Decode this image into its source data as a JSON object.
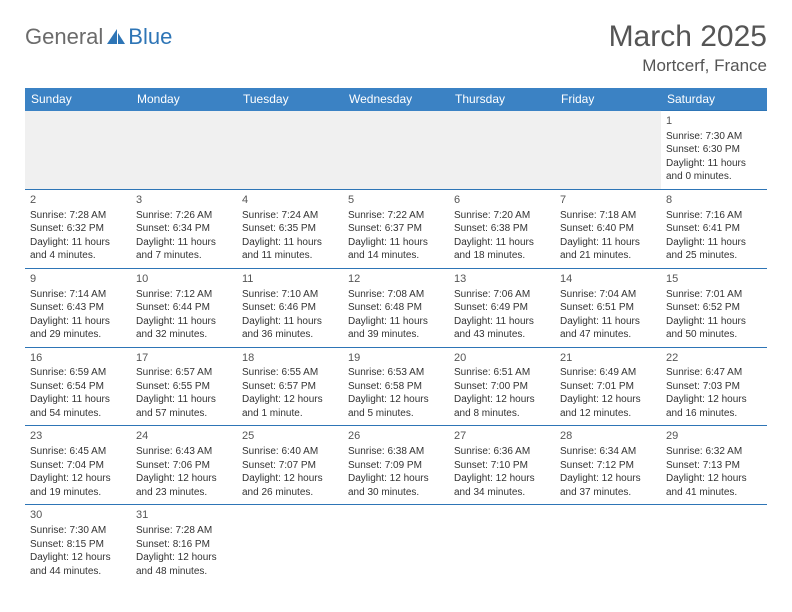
{
  "brand": {
    "part1": "General",
    "part2": "Blue"
  },
  "title": "March 2025",
  "location": "Mortcerf, France",
  "colors": {
    "header_bg": "#3b82c4",
    "header_text": "#ffffff",
    "border": "#2e75b6",
    "text": "#333333",
    "title_text": "#555555",
    "logo_gray": "#6b6b6b",
    "logo_blue": "#2e75b6",
    "empty_bg": "#f0f0f0"
  },
  "weekdays": [
    "Sunday",
    "Monday",
    "Tuesday",
    "Wednesday",
    "Thursday",
    "Friday",
    "Saturday"
  ],
  "rows": [
    [
      null,
      null,
      null,
      null,
      null,
      null,
      {
        "n": "1",
        "sr": "Sunrise: 7:30 AM",
        "ss": "Sunset: 6:30 PM",
        "dl": "Daylight: 11 hours and 0 minutes."
      }
    ],
    [
      {
        "n": "2",
        "sr": "Sunrise: 7:28 AM",
        "ss": "Sunset: 6:32 PM",
        "dl": "Daylight: 11 hours and 4 minutes."
      },
      {
        "n": "3",
        "sr": "Sunrise: 7:26 AM",
        "ss": "Sunset: 6:34 PM",
        "dl": "Daylight: 11 hours and 7 minutes."
      },
      {
        "n": "4",
        "sr": "Sunrise: 7:24 AM",
        "ss": "Sunset: 6:35 PM",
        "dl": "Daylight: 11 hours and 11 minutes."
      },
      {
        "n": "5",
        "sr": "Sunrise: 7:22 AM",
        "ss": "Sunset: 6:37 PM",
        "dl": "Daylight: 11 hours and 14 minutes."
      },
      {
        "n": "6",
        "sr": "Sunrise: 7:20 AM",
        "ss": "Sunset: 6:38 PM",
        "dl": "Daylight: 11 hours and 18 minutes."
      },
      {
        "n": "7",
        "sr": "Sunrise: 7:18 AM",
        "ss": "Sunset: 6:40 PM",
        "dl": "Daylight: 11 hours and 21 minutes."
      },
      {
        "n": "8",
        "sr": "Sunrise: 7:16 AM",
        "ss": "Sunset: 6:41 PM",
        "dl": "Daylight: 11 hours and 25 minutes."
      }
    ],
    [
      {
        "n": "9",
        "sr": "Sunrise: 7:14 AM",
        "ss": "Sunset: 6:43 PM",
        "dl": "Daylight: 11 hours and 29 minutes."
      },
      {
        "n": "10",
        "sr": "Sunrise: 7:12 AM",
        "ss": "Sunset: 6:44 PM",
        "dl": "Daylight: 11 hours and 32 minutes."
      },
      {
        "n": "11",
        "sr": "Sunrise: 7:10 AM",
        "ss": "Sunset: 6:46 PM",
        "dl": "Daylight: 11 hours and 36 minutes."
      },
      {
        "n": "12",
        "sr": "Sunrise: 7:08 AM",
        "ss": "Sunset: 6:48 PM",
        "dl": "Daylight: 11 hours and 39 minutes."
      },
      {
        "n": "13",
        "sr": "Sunrise: 7:06 AM",
        "ss": "Sunset: 6:49 PM",
        "dl": "Daylight: 11 hours and 43 minutes."
      },
      {
        "n": "14",
        "sr": "Sunrise: 7:04 AM",
        "ss": "Sunset: 6:51 PM",
        "dl": "Daylight: 11 hours and 47 minutes."
      },
      {
        "n": "15",
        "sr": "Sunrise: 7:01 AM",
        "ss": "Sunset: 6:52 PM",
        "dl": "Daylight: 11 hours and 50 minutes."
      }
    ],
    [
      {
        "n": "16",
        "sr": "Sunrise: 6:59 AM",
        "ss": "Sunset: 6:54 PM",
        "dl": "Daylight: 11 hours and 54 minutes."
      },
      {
        "n": "17",
        "sr": "Sunrise: 6:57 AM",
        "ss": "Sunset: 6:55 PM",
        "dl": "Daylight: 11 hours and 57 minutes."
      },
      {
        "n": "18",
        "sr": "Sunrise: 6:55 AM",
        "ss": "Sunset: 6:57 PM",
        "dl": "Daylight: 12 hours and 1 minute."
      },
      {
        "n": "19",
        "sr": "Sunrise: 6:53 AM",
        "ss": "Sunset: 6:58 PM",
        "dl": "Daylight: 12 hours and 5 minutes."
      },
      {
        "n": "20",
        "sr": "Sunrise: 6:51 AM",
        "ss": "Sunset: 7:00 PM",
        "dl": "Daylight: 12 hours and 8 minutes."
      },
      {
        "n": "21",
        "sr": "Sunrise: 6:49 AM",
        "ss": "Sunset: 7:01 PM",
        "dl": "Daylight: 12 hours and 12 minutes."
      },
      {
        "n": "22",
        "sr": "Sunrise: 6:47 AM",
        "ss": "Sunset: 7:03 PM",
        "dl": "Daylight: 12 hours and 16 minutes."
      }
    ],
    [
      {
        "n": "23",
        "sr": "Sunrise: 6:45 AM",
        "ss": "Sunset: 7:04 PM",
        "dl": "Daylight: 12 hours and 19 minutes."
      },
      {
        "n": "24",
        "sr": "Sunrise: 6:43 AM",
        "ss": "Sunset: 7:06 PM",
        "dl": "Daylight: 12 hours and 23 minutes."
      },
      {
        "n": "25",
        "sr": "Sunrise: 6:40 AM",
        "ss": "Sunset: 7:07 PM",
        "dl": "Daylight: 12 hours and 26 minutes."
      },
      {
        "n": "26",
        "sr": "Sunrise: 6:38 AM",
        "ss": "Sunset: 7:09 PM",
        "dl": "Daylight: 12 hours and 30 minutes."
      },
      {
        "n": "27",
        "sr": "Sunrise: 6:36 AM",
        "ss": "Sunset: 7:10 PM",
        "dl": "Daylight: 12 hours and 34 minutes."
      },
      {
        "n": "28",
        "sr": "Sunrise: 6:34 AM",
        "ss": "Sunset: 7:12 PM",
        "dl": "Daylight: 12 hours and 37 minutes."
      },
      {
        "n": "29",
        "sr": "Sunrise: 6:32 AM",
        "ss": "Sunset: 7:13 PM",
        "dl": "Daylight: 12 hours and 41 minutes."
      }
    ],
    [
      {
        "n": "30",
        "sr": "Sunrise: 7:30 AM",
        "ss": "Sunset: 8:15 PM",
        "dl": "Daylight: 12 hours and 44 minutes."
      },
      {
        "n": "31",
        "sr": "Sunrise: 7:28 AM",
        "ss": "Sunset: 8:16 PM",
        "dl": "Daylight: 12 hours and 48 minutes."
      },
      null,
      null,
      null,
      null,
      null
    ]
  ]
}
